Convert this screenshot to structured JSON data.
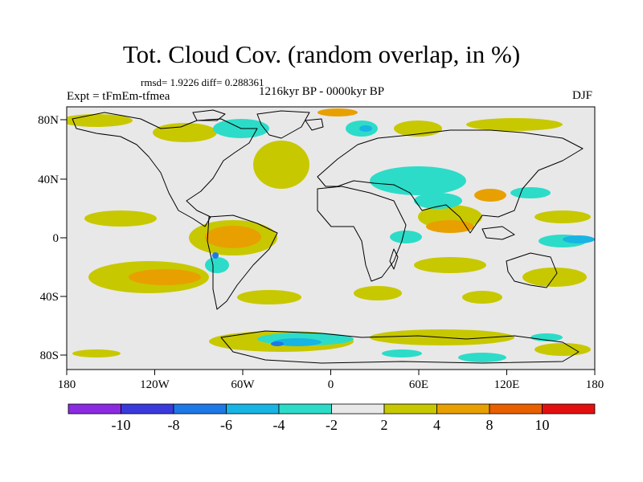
{
  "header": {
    "title": "Tot. Cloud Cov. (random overlap, in %)",
    "stats": "rmsd= 1.9226  diff= 0.288361",
    "expt": "Expt = tFmEm-tfmea",
    "period": "1216kyr BP - 0000kyr BP",
    "season": "DJF"
  },
  "map": {
    "lat_ticks": [
      "80N",
      "40N",
      "0",
      "40S",
      "80S"
    ],
    "lon_ticks": [
      "180",
      "120W",
      "60W",
      "0",
      "60E",
      "120E",
      "180"
    ]
  },
  "colorbar": {
    "colors": [
      "#8a2be2",
      "#3a3adc",
      "#1e78e6",
      "#18b4e4",
      "#2cdcc8",
      "#e8e8e8",
      "#c8c800",
      "#e8a000",
      "#e86000",
      "#e41010"
    ],
    "labels": [
      "-10",
      "-8",
      "-6",
      "-4",
      "-2",
      "2",
      "4",
      "8",
      "10"
    ]
  }
}
